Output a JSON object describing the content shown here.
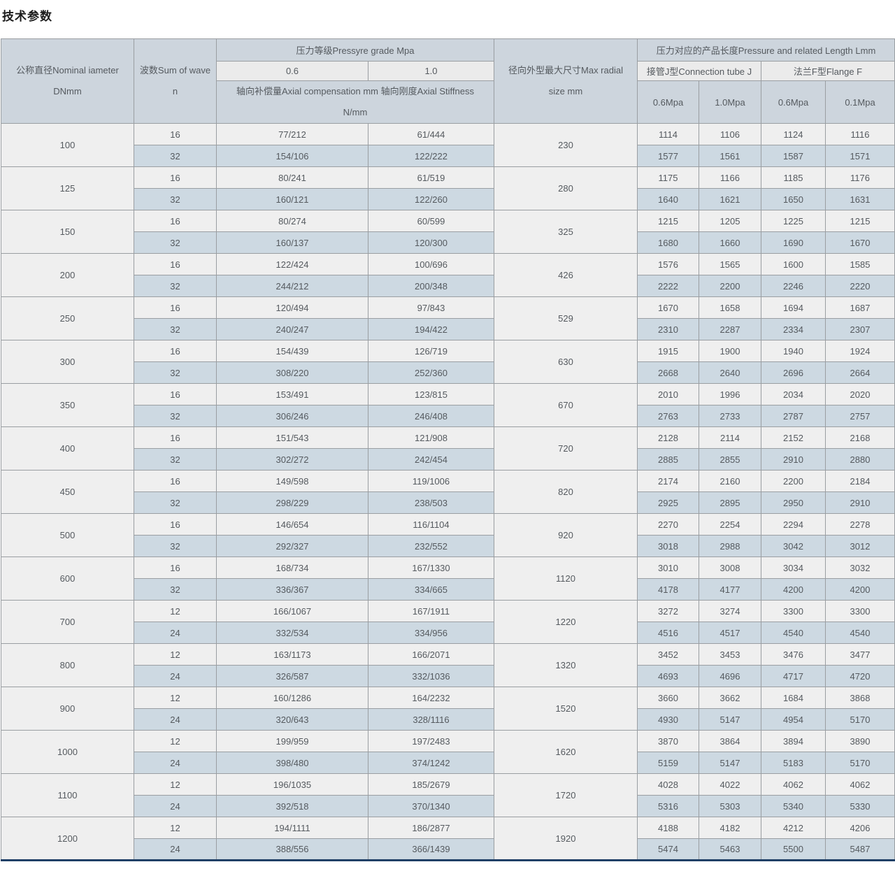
{
  "page_title": "技术参数",
  "colors": {
    "header_bg": "#cdd5dd",
    "subheader_light_bg": "#ebebeb",
    "row_light_bg": "#efefef",
    "row_alt_bg": "#cdd9e2",
    "grid_border": "#9a9ea2",
    "table_bottom_border": "#1f3f66",
    "text": "#555a5f"
  },
  "table": {
    "header": {
      "col_diameter_lines": [
        "公称直径Nominal iameter",
        "DNmm"
      ],
      "col_waves_lines": [
        "波数Sum of wave",
        "n"
      ],
      "pressure_grade": "压力等级Pressyre grade Mpa",
      "grade_06": "0.6",
      "grade_10": "1.0",
      "axial_note_lines": [
        "轴向补偿量Axial compensation mm 轴向刚度Axial Stiffness",
        "N/mm"
      ],
      "col_radial_lines": [
        "径向外型最大尺寸Max radial",
        "size mm"
      ],
      "length_header": "压力对应的产品长度Pressure and related Length Lmm",
      "connection_tube": "接管J型Connection tube J",
      "flange": "法兰F型Flange F",
      "sub_cols": [
        "0.6Mpa",
        "1.0Mpa",
        "0.6Mpa",
        "0.1Mpa"
      ]
    },
    "groups": [
      {
        "dn": "100",
        "radial": "230",
        "rows": [
          {
            "n": "16",
            "comp06": "77/212",
            "comp10": "61/444",
            "j06": "1114",
            "j10": "1106",
            "f06": "1124",
            "f01": "1116"
          },
          {
            "n": "32",
            "comp06": "154/106",
            "comp10": "122/222",
            "j06": "1577",
            "j10": "1561",
            "f06": "1587",
            "f01": "1571"
          }
        ]
      },
      {
        "dn": "125",
        "radial": "280",
        "rows": [
          {
            "n": "16",
            "comp06": "80/241",
            "comp10": "61/519",
            "j06": "1175",
            "j10": "1166",
            "f06": "1185",
            "f01": "1176"
          },
          {
            "n": "32",
            "comp06": "160/121",
            "comp10": "122/260",
            "j06": "1640",
            "j10": "1621",
            "f06": "1650",
            "f01": "1631"
          }
        ]
      },
      {
        "dn": "150",
        "radial": "325",
        "rows": [
          {
            "n": "16",
            "comp06": "80/274",
            "comp10": "60/599",
            "j06": "1215",
            "j10": "1205",
            "f06": "1225",
            "f01": "1215"
          },
          {
            "n": "32",
            "comp06": "160/137",
            "comp10": "120/300",
            "j06": "1680",
            "j10": "1660",
            "f06": "1690",
            "f01": "1670"
          }
        ]
      },
      {
        "dn": "200",
        "radial": "426",
        "rows": [
          {
            "n": "16",
            "comp06": "122/424",
            "comp10": "100/696",
            "j06": "1576",
            "j10": "1565",
            "f06": "1600",
            "f01": "1585"
          },
          {
            "n": "32",
            "comp06": "244/212",
            "comp10": "200/348",
            "j06": "2222",
            "j10": "2200",
            "f06": "2246",
            "f01": "2220"
          }
        ]
      },
      {
        "dn": "250",
        "radial": "529",
        "rows": [
          {
            "n": "16",
            "comp06": "120/494",
            "comp10": "97/843",
            "j06": "1670",
            "j10": "1658",
            "f06": "1694",
            "f01": "1687"
          },
          {
            "n": "32",
            "comp06": "240/247",
            "comp10": "194/422",
            "j06": "2310",
            "j10": "2287",
            "f06": "2334",
            "f01": "2307"
          }
        ]
      },
      {
        "dn": "300",
        "radial": "630",
        "rows": [
          {
            "n": "16",
            "comp06": "154/439",
            "comp10": "126/719",
            "j06": "1915",
            "j10": "1900",
            "f06": "1940",
            "f01": "1924"
          },
          {
            "n": "32",
            "comp06": "308/220",
            "comp10": "252/360",
            "j06": "2668",
            "j10": "2640",
            "f06": "2696",
            "f01": "2664"
          }
        ]
      },
      {
        "dn": "350",
        "radial": "670",
        "rows": [
          {
            "n": "16",
            "comp06": "153/491",
            "comp10": "123/815",
            "j06": "2010",
            "j10": "1996",
            "f06": "2034",
            "f01": "2020"
          },
          {
            "n": "32",
            "comp06": "306/246",
            "comp10": "246/408",
            "j06": "2763",
            "j10": "2733",
            "f06": "2787",
            "f01": "2757"
          }
        ]
      },
      {
        "dn": "400",
        "radial": "720",
        "rows": [
          {
            "n": "16",
            "comp06": "151/543",
            "comp10": "121/908",
            "j06": "2128",
            "j10": "2114",
            "f06": "2152",
            "f01": "2168"
          },
          {
            "n": "32",
            "comp06": "302/272",
            "comp10": "242/454",
            "j06": "2885",
            "j10": "2855",
            "f06": "2910",
            "f01": "2880"
          }
        ]
      },
      {
        "dn": "450",
        "radial": "820",
        "rows": [
          {
            "n": "16",
            "comp06": "149/598",
            "comp10": "119/1006",
            "j06": "2174",
            "j10": "2160",
            "f06": "2200",
            "f01": "2184"
          },
          {
            "n": "32",
            "comp06": "298/229",
            "comp10": "238/503",
            "j06": "2925",
            "j10": "2895",
            "f06": "2950",
            "f01": "2910"
          }
        ]
      },
      {
        "dn": "500",
        "radial": "920",
        "rows": [
          {
            "n": "16",
            "comp06": "146/654",
            "comp10": "116/1104",
            "j06": "2270",
            "j10": "2254",
            "f06": "2294",
            "f01": "2278"
          },
          {
            "n": "32",
            "comp06": "292/327",
            "comp10": "232/552",
            "j06": "3018",
            "j10": "2988",
            "f06": "3042",
            "f01": "3012"
          }
        ]
      },
      {
        "dn": "600",
        "radial": "1120",
        "rows": [
          {
            "n": "16",
            "comp06": "168/734",
            "comp10": "167/1330",
            "j06": "3010",
            "j10": "3008",
            "f06": "3034",
            "f01": "3032"
          },
          {
            "n": "32",
            "comp06": "336/367",
            "comp10": "334/665",
            "j06": "4178",
            "j10": "4177",
            "f06": "4200",
            "f01": "4200"
          }
        ]
      },
      {
        "dn": "700",
        "radial": "1220",
        "rows": [
          {
            "n": "12",
            "comp06": "166/1067",
            "comp10": "167/1911",
            "j06": "3272",
            "j10": "3274",
            "f06": "3300",
            "f01": "3300"
          },
          {
            "n": "24",
            "comp06": "332/534",
            "comp10": "334/956",
            "j06": "4516",
            "j10": "4517",
            "f06": "4540",
            "f01": "4540"
          }
        ]
      },
      {
        "dn": "800",
        "radial": "1320",
        "rows": [
          {
            "n": "12",
            "comp06": "163/1173",
            "comp10": "166/2071",
            "j06": "3452",
            "j10": "3453",
            "f06": "3476",
            "f01": "3477"
          },
          {
            "n": "24",
            "comp06": "326/587",
            "comp10": "332/1036",
            "j06": "4693",
            "j10": "4696",
            "f06": "4717",
            "f01": "4720"
          }
        ]
      },
      {
        "dn": "900",
        "radial": "1520",
        "rows": [
          {
            "n": "12",
            "comp06": "160/1286",
            "comp10": "164/2232",
            "j06": "3660",
            "j10": "3662",
            "f06": "1684",
            "f01": "3868"
          },
          {
            "n": "24",
            "comp06": "320/643",
            "comp10": "328/1116",
            "j06": "4930",
            "j10": "5147",
            "f06": "4954",
            "f01": "5170"
          }
        ]
      },
      {
        "dn": "1000",
        "radial": "1620",
        "rows": [
          {
            "n": "12",
            "comp06": "199/959",
            "comp10": "197/2483",
            "j06": "3870",
            "j10": "3864",
            "f06": "3894",
            "f01": "3890"
          },
          {
            "n": "24",
            "comp06": "398/480",
            "comp10": "374/1242",
            "j06": "5159",
            "j10": "5147",
            "f06": "5183",
            "f01": "5170"
          }
        ]
      },
      {
        "dn": "1100",
        "radial": "1720",
        "rows": [
          {
            "n": "12",
            "comp06": "196/1035",
            "comp10": "185/2679",
            "j06": "4028",
            "j10": "4022",
            "f06": "4062",
            "f01": "4062"
          },
          {
            "n": "24",
            "comp06": "392/518",
            "comp10": "370/1340",
            "j06": "5316",
            "j10": "5303",
            "f06": "5340",
            "f01": "5330"
          }
        ]
      },
      {
        "dn": "1200",
        "radial": "1920",
        "rows": [
          {
            "n": "12",
            "comp06": "194/1111",
            "comp10": "186/2877",
            "j06": "4188",
            "j10": "4182",
            "f06": "4212",
            "f01": "4206"
          },
          {
            "n": "24",
            "comp06": "388/556",
            "comp10": "366/1439",
            "j06": "5474",
            "j10": "5463",
            "f06": "5500",
            "f01": "5487"
          }
        ]
      }
    ]
  }
}
